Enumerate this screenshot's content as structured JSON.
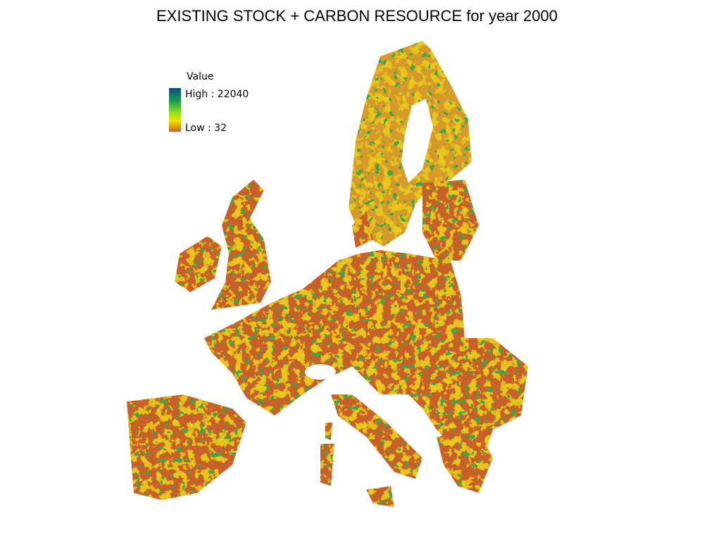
{
  "header": {
    "title": "EXISTING STOCK + CARBON RESOURCE for year 2000"
  },
  "legend": {
    "title": "Value",
    "high": "High : 22040",
    "low": "Low : 32"
  }
}
